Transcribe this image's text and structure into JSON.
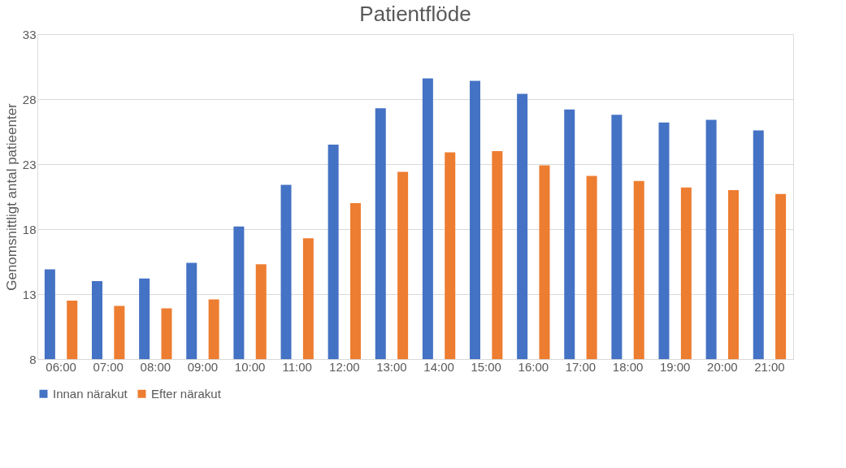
{
  "chart_data": {
    "type": "bar",
    "title": "Patientflöde",
    "ylabel": "Genomsnittligt antal patieenter",
    "categories": [
      "06:00",
      "07:00",
      "08:00",
      "09:00",
      "10:00",
      "11:00",
      "12:00",
      "13:00",
      "14:00",
      "15:00",
      "16:00",
      "17:00",
      "18:00",
      "19:00",
      "20:00",
      "21:00"
    ],
    "series": [
      {
        "name": "Innan närakut",
        "color": "#4472c4",
        "values": [
          14.9,
          14.0,
          14.2,
          15.4,
          18.2,
          21.4,
          24.5,
          27.3,
          29.6,
          29.4,
          28.4,
          27.2,
          26.8,
          26.2,
          26.4,
          25.6
        ]
      },
      {
        "name": "Efter närakut",
        "color": "#ed7d31",
        "values": [
          12.5,
          12.1,
          11.9,
          12.6,
          15.3,
          17.3,
          20.0,
          22.4,
          23.9,
          24.0,
          22.9,
          22.1,
          21.7,
          21.2,
          21.0,
          20.7
        ]
      }
    ],
    "ylim": [
      8,
      33
    ],
    "yticks": [
      8,
      13,
      18,
      23,
      28,
      33
    ],
    "grid": "y",
    "legend": "bottom"
  }
}
